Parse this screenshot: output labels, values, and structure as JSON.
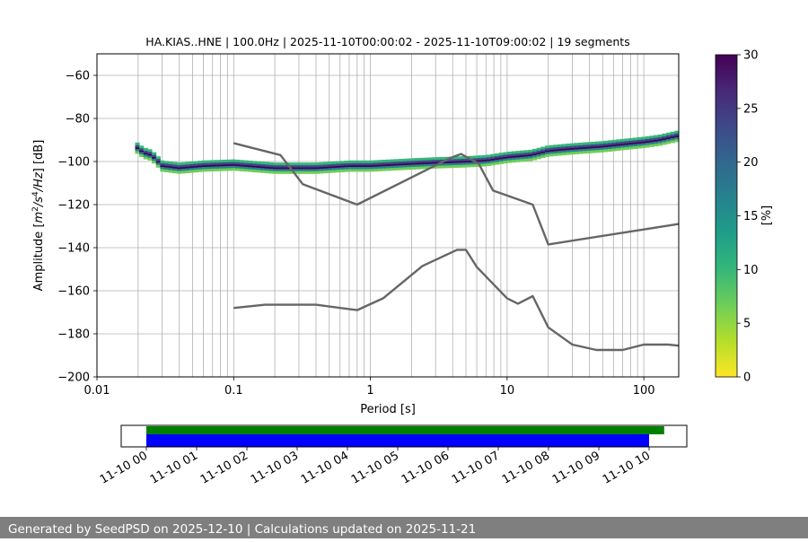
{
  "chart_data": [
    {
      "type": "heatmap",
      "title": "HA.KIAS..HNE | 100.0Hz | 2025-11-10T00:00:02 - 2025-11-10T09:00:02 | 19 segments",
      "xlabel": "Period [s]",
      "ylabel": "Amplitude [m²/s⁴/Hz] [dB]",
      "x_scale": "log",
      "xlim": [
        0.01,
        180
      ],
      "ylim": [
        -200,
        -50
      ],
      "x_ticks": [
        0.01,
        0.1,
        1,
        10,
        100
      ],
      "x_tick_labels": [
        "0.01",
        "0.1",
        "1",
        "10",
        "100"
      ],
      "y_ticks": [
        -200,
        -180,
        -160,
        -140,
        -120,
        -100,
        -80,
        -60
      ],
      "y_tick_labels": [
        "−200",
        "−180",
        "−160",
        "−140",
        "−120",
        "−100",
        "−80",
        "−60"
      ],
      "grid": true,
      "colorbar": {
        "label": "[%]",
        "min": 0,
        "max": 30,
        "ticks": [
          0,
          5,
          10,
          15,
          20,
          25,
          30
        ],
        "tick_labels": [
          "0",
          "5",
          "10",
          "15",
          "20",
          "25",
          "30"
        ],
        "colormap": "viridis_r"
      },
      "psd_density_curve": {
        "period": [
          0.019,
          0.02,
          0.022,
          0.025,
          0.03,
          0.04,
          0.06,
          0.1,
          0.2,
          0.4,
          0.7,
          1.0,
          2.0,
          3.0,
          5.0,
          7.0,
          10,
          15,
          20,
          30,
          50,
          70,
          100,
          130,
          180
        ],
        "amplitude_db": [
          -93,
          -94,
          -96,
          -97,
          -102,
          -103,
          -102,
          -101.5,
          -103,
          -103,
          -102,
          -102,
          -101,
          -100.5,
          -100,
          -99.5,
          -98,
          -97,
          -95,
          -94,
          -93,
          -92,
          -91,
          -90,
          -88
        ]
      },
      "series": [
        {
          "name": "",
          "x": [
            0.1,
            0.22,
            0.32,
            0.8,
            3.8,
            4.6,
            6.2,
            7.9,
            15.4,
            20,
            180
          ],
          "y": [
            -91.5,
            -97,
            -110.5,
            -120,
            -98.5,
            -96.5,
            -101,
            -113.5,
            -120,
            -138.5,
            -129
          ]
        },
        {
          "name": "",
          "x": [
            0.1,
            0.17,
            0.4,
            0.8,
            1.24,
            2.4,
            4.3,
            5.0,
            6.0,
            10,
            12,
            15.4,
            20,
            30,
            45,
            70,
            100,
            150,
            180
          ],
          "y": [
            -168,
            -166.5,
            -166.5,
            -169,
            -163.5,
            -148.5,
            -141,
            -141,
            -149,
            -163.5,
            -166,
            -162.5,
            -177,
            -185,
            -187.5,
            -187.5,
            -185,
            -185,
            -185.5
          ]
        }
      ]
    },
    {
      "type": "bar",
      "title": "",
      "x_tick_labels": [
        "11-10 00",
        "11-10 01",
        "11-10 02",
        "11-10 03",
        "11-10 04",
        "11-10 05",
        "11-10 06",
        "11-10 07",
        "11-10 08",
        "11-10 09",
        "11-10 10"
      ],
      "x_range_hours": [
        -0.5,
        10.75
      ],
      "bars": [
        {
          "color": "#008000",
          "start_hour": 0.0,
          "end_hour": 10.3
        },
        {
          "color": "#0000ff",
          "start_hour": 0.0,
          "end_hour": 10.0
        }
      ]
    }
  ],
  "colors": {
    "nlnm_nhnm_line": "#666666",
    "grid": "#b0b0b0",
    "footer_bg": "#7f7f7f",
    "footer_text": "#ffffff",
    "availability_top": "#008000",
    "availability_bottom": "#0000ff"
  },
  "footer": {
    "text": "Generated by SeedPSD on 2025-12-10 | Calculations updated on 2025-11-21"
  }
}
